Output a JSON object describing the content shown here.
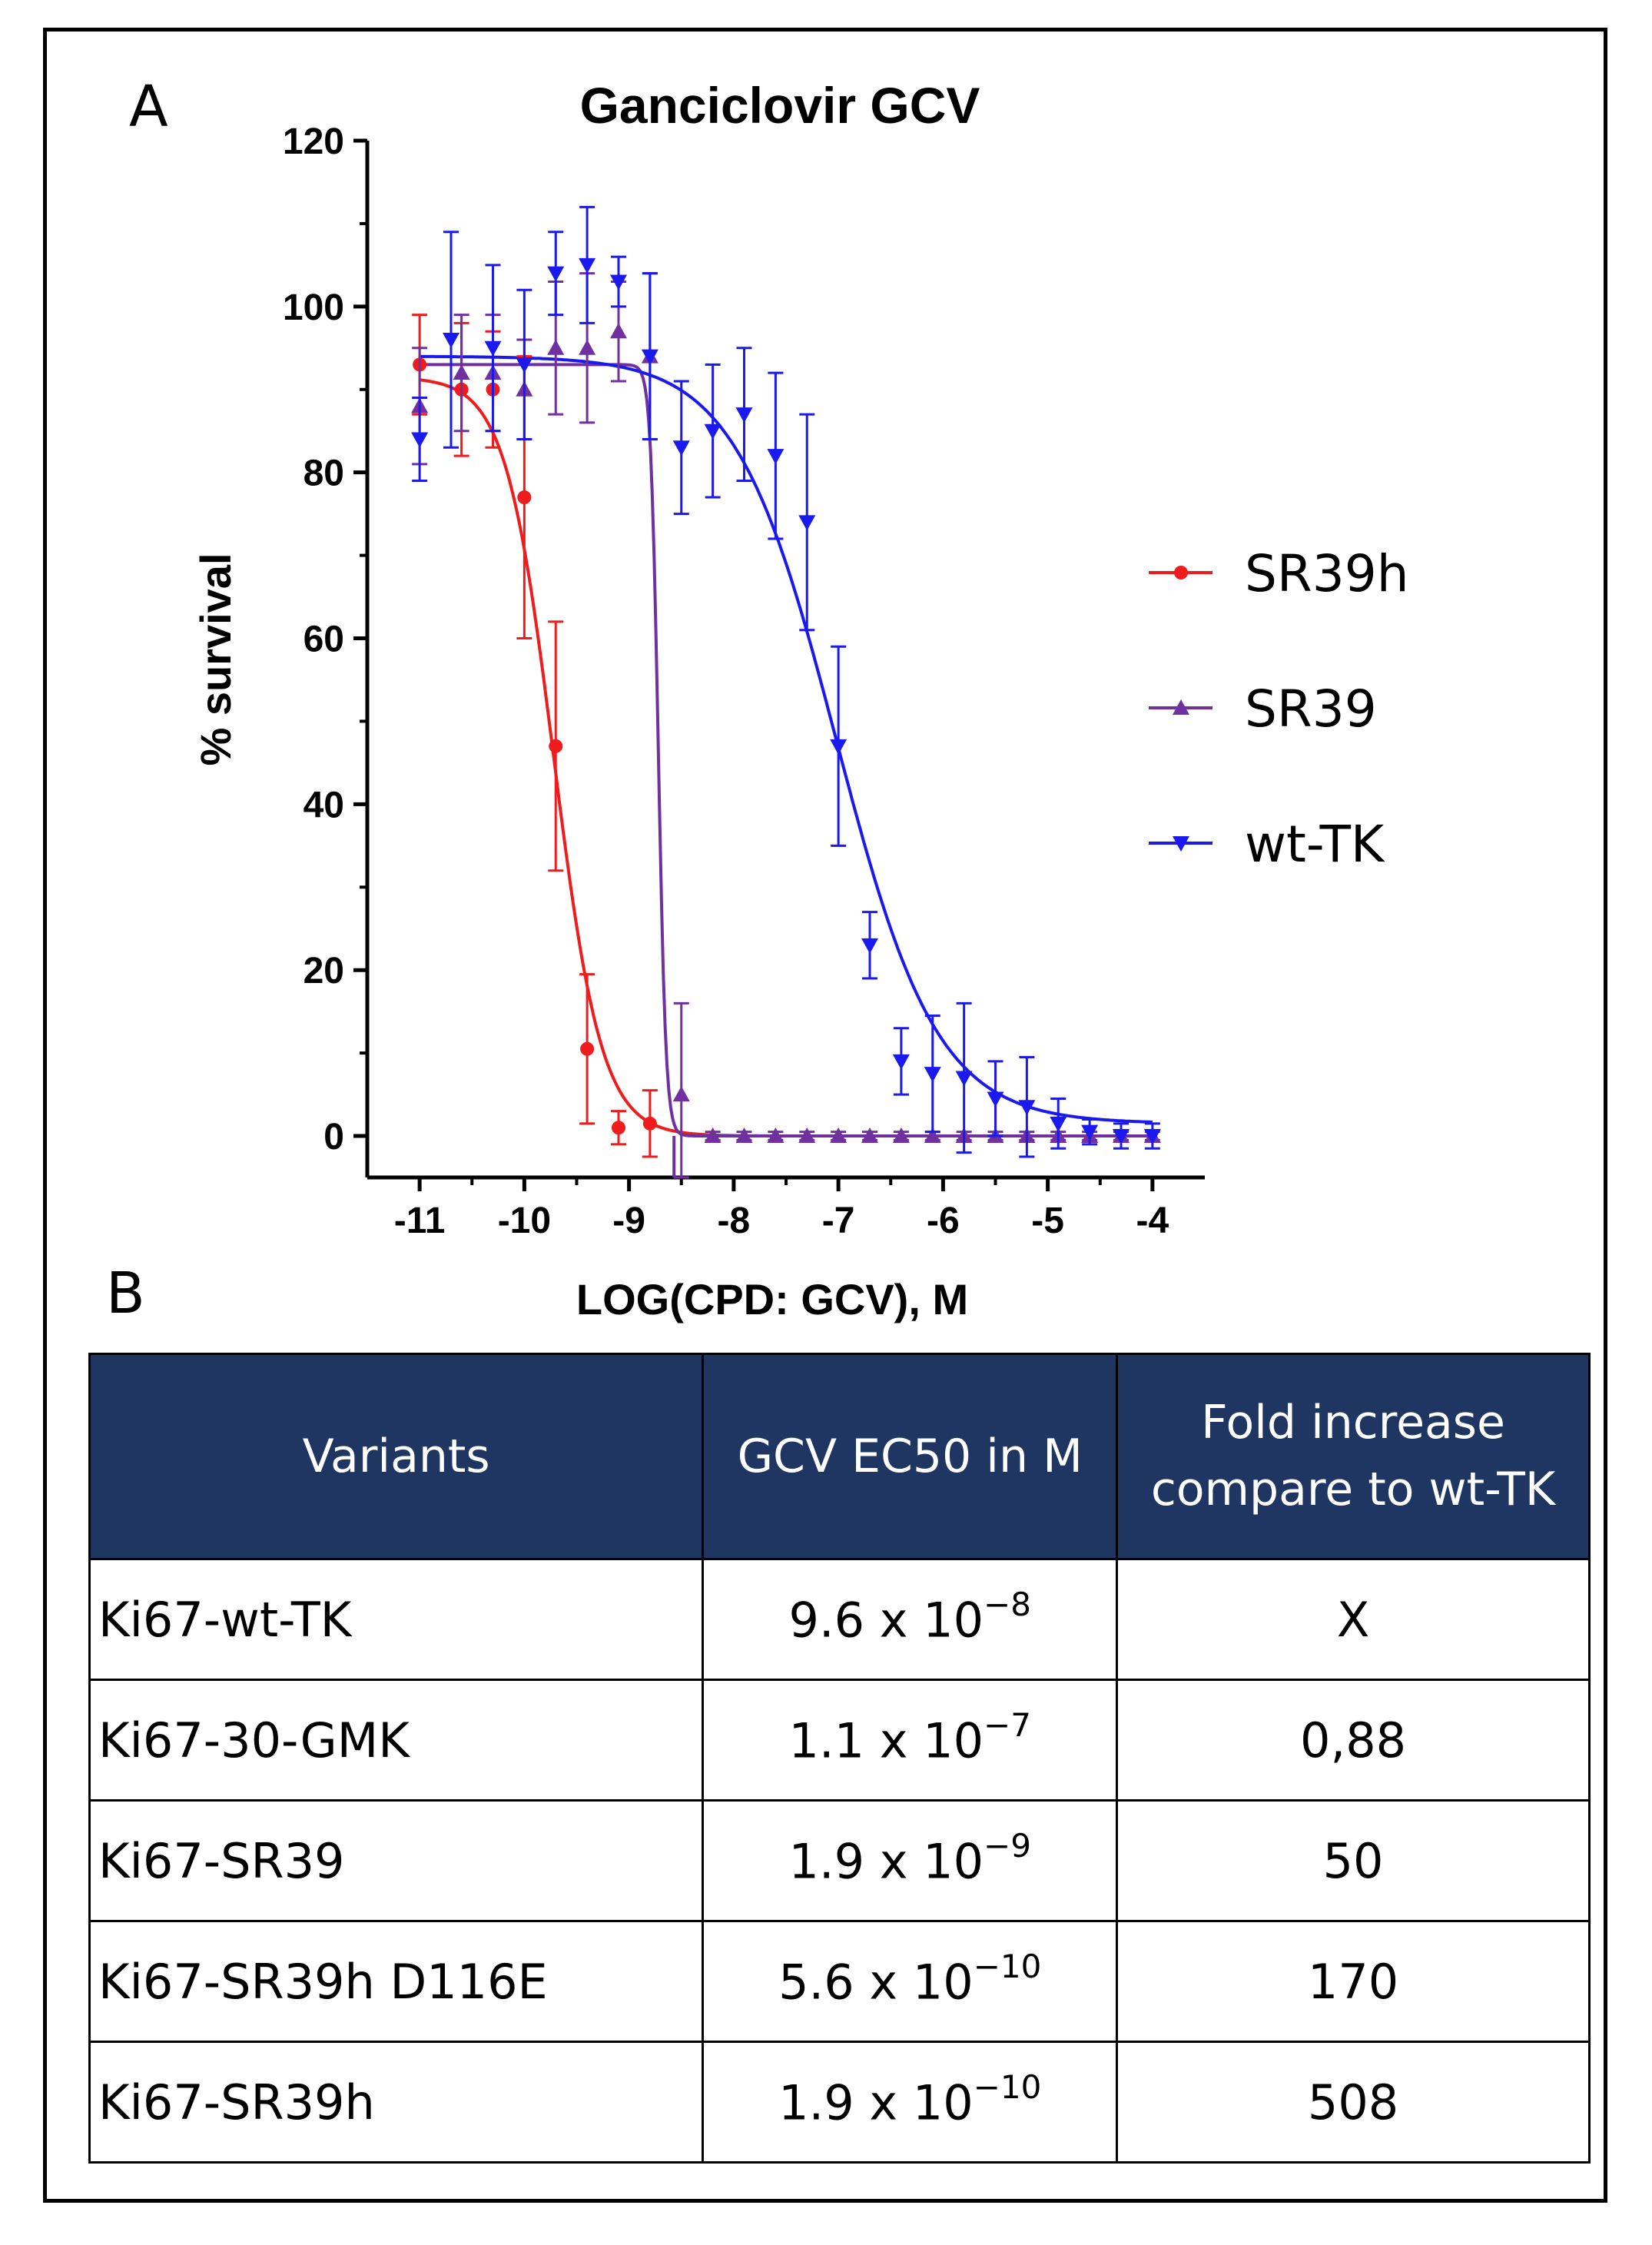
{
  "panel_a_label": "A",
  "panel_b_label": "B",
  "chart_data": {
    "type": "scatter",
    "title": "Ganciclovir  GCV",
    "xlabel": "LOG(CPD: GCV), M",
    "ylabel": "% survival",
    "xlim": [
      -11.5,
      -3.5
    ],
    "ylim": [
      -5,
      120
    ],
    "xticks": [
      -11,
      -10,
      -9,
      -8,
      -7,
      -6,
      -5,
      -4
    ],
    "yticks": [
      0,
      20,
      40,
      60,
      80,
      100,
      120
    ],
    "legend_position": "right",
    "series": [
      {
        "name": "SR39h",
        "color": "#ee1c1c",
        "marker": "circle",
        "fit": {
          "top": 91.5,
          "bottom": 0,
          "log_ec50": -9.72,
          "hill": 1.9
        },
        "points": [
          {
            "x": -11,
            "y": 93,
            "err": 6
          },
          {
            "x": -10.6,
            "y": 90,
            "err": 8
          },
          {
            "x": -10.3,
            "y": 90,
            "err": 7
          },
          {
            "x": -10,
            "y": 77,
            "err": 17
          },
          {
            "x": -9.7,
            "y": 47,
            "err": 15
          },
          {
            "x": -9.4,
            "y": 10.5,
            "err": 9
          },
          {
            "x": -9.1,
            "y": 1,
            "err": 2
          },
          {
            "x": -8.8,
            "y": 1.5,
            "err": 4
          }
        ]
      },
      {
        "name": "SR39",
        "color": "#7030a0",
        "marker": "triangle-up",
        "fit": {
          "top": 93,
          "bottom": 0,
          "log_ec50": -8.72,
          "hill": 12
        },
        "points": [
          {
            "x": -11,
            "y": 88,
            "err": 7
          },
          {
            "x": -10.6,
            "y": 92,
            "err": 7
          },
          {
            "x": -10.3,
            "y": 92,
            "err": 7
          },
          {
            "x": -10,
            "y": 90,
            "err": 6
          },
          {
            "x": -9.7,
            "y": 95,
            "err": 8
          },
          {
            "x": -9.4,
            "y": 95,
            "err": 9
          },
          {
            "x": -9.1,
            "y": 97,
            "err": 6
          },
          {
            "x": -8.8,
            "y": 94,
            "err": 10
          },
          {
            "x": -8.5,
            "y": 5,
            "err": 11
          },
          {
            "x": -8.2,
            "y": 0,
            "err": 0.5
          },
          {
            "x": -7.9,
            "y": 0,
            "err": 0.5
          },
          {
            "x": -7.6,
            "y": 0,
            "err": 0.5
          },
          {
            "x": -7.3,
            "y": 0,
            "err": 0.5
          },
          {
            "x": -7.0,
            "y": 0,
            "err": 0.5
          },
          {
            "x": -6.7,
            "y": 0,
            "err": 0.5
          },
          {
            "x": -6.4,
            "y": 0,
            "err": 0.5
          },
          {
            "x": -6.1,
            "y": 0,
            "err": 0.5
          },
          {
            "x": -5.8,
            "y": 0,
            "err": 0.5
          },
          {
            "x": -5.5,
            "y": 0,
            "err": 0.5
          },
          {
            "x": -5.2,
            "y": 0,
            "err": 0.5
          },
          {
            "x": -4.9,
            "y": 0,
            "err": 0.5
          },
          {
            "x": -4.6,
            "y": 0,
            "err": 0.5
          },
          {
            "x": -4.3,
            "y": 0,
            "err": 0.5
          },
          {
            "x": -4.0,
            "y": 0,
            "err": 0.5
          }
        ]
      },
      {
        "name": "wt-TK",
        "color": "#1a1aee",
        "marker": "triangle-down",
        "fit": {
          "top": 94,
          "bottom": 1.5,
          "log_ec50": -7.02,
          "hill": 0.9
        },
        "points": [
          {
            "x": -11,
            "y": 84,
            "err": 5
          },
          {
            "x": -10.7,
            "y": 96,
            "err": 13
          },
          {
            "x": -10.3,
            "y": 95,
            "err": 10
          },
          {
            "x": -10,
            "y": 93,
            "err": 9
          },
          {
            "x": -9.7,
            "y": 104,
            "err": 5
          },
          {
            "x": -9.4,
            "y": 105,
            "err": 7
          },
          {
            "x": -9.1,
            "y": 103,
            "err": 3
          },
          {
            "x": -8.8,
            "y": 94,
            "err": 10
          },
          {
            "x": -8.5,
            "y": 83,
            "err": 8
          },
          {
            "x": -8.2,
            "y": 85,
            "err": 8
          },
          {
            "x": -7.9,
            "y": 87,
            "err": 8
          },
          {
            "x": -7.6,
            "y": 82,
            "err": 10
          },
          {
            "x": -7.3,
            "y": 74,
            "err": 13
          },
          {
            "x": -7.0,
            "y": 47,
            "err": 12
          },
          {
            "x": -6.7,
            "y": 23,
            "err": 4
          },
          {
            "x": -6.4,
            "y": 9,
            "err": 4
          },
          {
            "x": -6.1,
            "y": 7.5,
            "err": 7
          },
          {
            "x": -5.8,
            "y": 7,
            "err": 9
          },
          {
            "x": -5.5,
            "y": 4.5,
            "err": 4.5
          },
          {
            "x": -5.2,
            "y": 3.5,
            "err": 6
          },
          {
            "x": -4.9,
            "y": 1.5,
            "err": 3
          },
          {
            "x": -4.6,
            "y": 0.5,
            "err": 1.5
          },
          {
            "x": -4.3,
            "y": 0,
            "err": 1.5
          },
          {
            "x": -4.0,
            "y": 0,
            "err": 1.5
          }
        ]
      }
    ]
  },
  "table": {
    "headers": [
      "Variants",
      "GCV EC50 in M",
      "Fold increase compare to wt-TK"
    ],
    "rows": [
      {
        "variant": "Ki67-wt-TK",
        "ec50_mantissa": "9.6 x 10",
        "ec50_exp": "−8",
        "fold": "X"
      },
      {
        "variant": "Ki67-30-GMK",
        "ec50_mantissa": "1.1  x 10",
        "ec50_exp": "−7",
        "fold": "0,88"
      },
      {
        "variant": "Ki67-SR39",
        "ec50_mantissa": "1.9 x 10",
        "ec50_exp": "−9",
        "fold": "50"
      },
      {
        "variant": "Ki67-SR39h D116E",
        "ec50_mantissa": "5.6 x 10",
        "ec50_exp": "−10",
        "fold": "170"
      },
      {
        "variant": "Ki67-SR39h",
        "ec50_mantissa": "1.9 x 10",
        "ec50_exp": "−10",
        "fold": "508"
      }
    ]
  }
}
